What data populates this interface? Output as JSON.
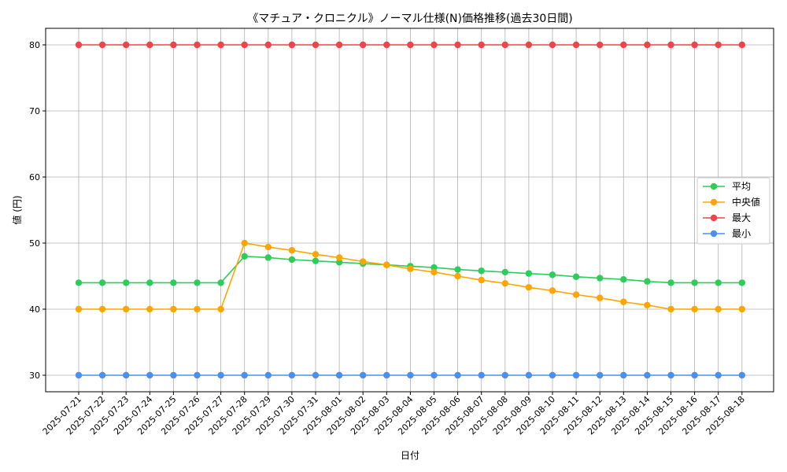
{
  "chart_data": {
    "type": "line",
    "title": "《マチュア・クロニクル》ノーマル仕様(N)価格推移(過去30日間)",
    "xlabel": "日付",
    "ylabel": "値 (円)",
    "ylim": [
      27.5,
      82.5
    ],
    "yticks": [
      30,
      40,
      50,
      60,
      70,
      80
    ],
    "grid": true,
    "legend_position": "center-right",
    "categories": [
      "2025-07-21",
      "2025-07-22",
      "2025-07-23",
      "2025-07-24",
      "2025-07-25",
      "2025-07-26",
      "2025-07-27",
      "2025-07-28",
      "2025-07-29",
      "2025-07-30",
      "2025-07-31",
      "2025-08-01",
      "2025-08-02",
      "2025-08-03",
      "2025-08-04",
      "2025-08-05",
      "2025-08-06",
      "2025-08-07",
      "2025-08-08",
      "2025-08-09",
      "2025-08-10",
      "2025-08-11",
      "2025-08-12",
      "2025-08-13",
      "2025-08-14",
      "2025-08-15",
      "2025-08-16",
      "2025-08-17",
      "2025-08-18"
    ],
    "series": [
      {
        "name": "平均",
        "color": "#2ecc5a",
        "values": [
          44,
          44,
          44,
          44,
          44,
          44,
          44,
          48,
          47.8,
          47.5,
          47.3,
          47.1,
          46.9,
          46.7,
          46.5,
          46.3,
          46.0,
          45.8,
          45.6,
          45.4,
          45.2,
          44.9,
          44.7,
          44.5,
          44.2,
          44,
          44,
          44,
          44
        ]
      },
      {
        "name": "中央値",
        "color": "#ffa500",
        "values": [
          40,
          40,
          40,
          40,
          40,
          40,
          40,
          50,
          49.4,
          48.9,
          48.3,
          47.8,
          47.2,
          46.7,
          46.1,
          45.6,
          45.0,
          44.4,
          43.9,
          43.3,
          42.8,
          42.2,
          41.7,
          41.1,
          40.6,
          40,
          40,
          40,
          40
        ]
      },
      {
        "name": "最大",
        "color": "#f0444a",
        "values": [
          80,
          80,
          80,
          80,
          80,
          80,
          80,
          80,
          80,
          80,
          80,
          80,
          80,
          80,
          80,
          80,
          80,
          80,
          80,
          80,
          80,
          80,
          80,
          80,
          80,
          80,
          80,
          80,
          80
        ]
      },
      {
        "name": "最小",
        "color": "#4a90f0",
        "values": [
          30,
          30,
          30,
          30,
          30,
          30,
          30,
          30,
          30,
          30,
          30,
          30,
          30,
          30,
          30,
          30,
          30,
          30,
          30,
          30,
          30,
          30,
          30,
          30,
          30,
          30,
          30,
          30,
          30
        ]
      }
    ]
  }
}
